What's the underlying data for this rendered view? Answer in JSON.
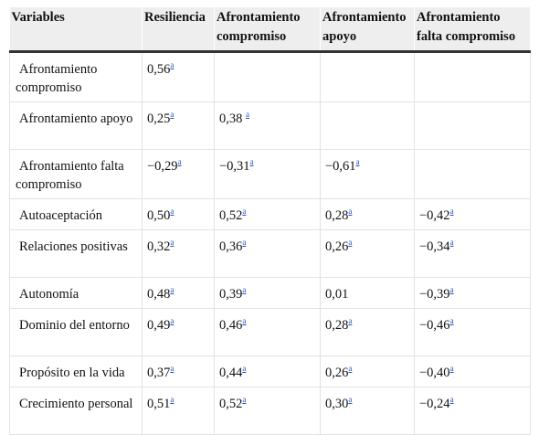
{
  "table": {
    "header": [
      "Variables",
      "Resiliencia",
      "Afrontamiento compromiso",
      "Afrontamiento apoyo",
      "Afrontamiento falta compromiso"
    ],
    "rows": [
      {
        "label": "Afrontamiento compromiso",
        "cells": [
          {
            "value": "0,56",
            "note": "a"
          }
        ]
      },
      {
        "label": "Afrontamiento apoyo",
        "cells": [
          {
            "value": "0,25",
            "note": "a"
          },
          {
            "value": "0,38 ",
            "note": "a"
          }
        ]
      },
      {
        "label": "Afrontamiento falta compromiso",
        "cells": [
          {
            "value": "−0,29",
            "note": "a"
          },
          {
            "value": "−0,31",
            "note": "a"
          },
          {
            "value": "−0,61",
            "note": "a"
          }
        ]
      },
      {
        "label": "Autoaceptación",
        "cells": [
          {
            "value": "0,50",
            "note": "a"
          },
          {
            "value": "0,52",
            "note": "a"
          },
          {
            "value": "0,28",
            "note": "a"
          },
          {
            "value": "−0,42",
            "note": "a"
          }
        ]
      },
      {
        "label": "Relaciones positivas",
        "cells": [
          {
            "value": "0,32",
            "note": "a"
          },
          {
            "value": "0,36",
            "note": "a"
          },
          {
            "value": "0,26",
            "note": "a"
          },
          {
            "value": "−0,34",
            "note": "a"
          }
        ]
      },
      {
        "label": "Autonomía",
        "cells": [
          {
            "value": "0,48",
            "note": "a"
          },
          {
            "value": "0,39",
            "note": "a"
          },
          {
            "value": "0,01"
          },
          {
            "value": "−0,39",
            "note": "a"
          }
        ]
      },
      {
        "label": "Dominio del entorno",
        "cells": [
          {
            "value": "0,49",
            "note": "a"
          },
          {
            "value": "0,46",
            "note": "a"
          },
          {
            "value": "0,28",
            "note": "a"
          },
          {
            "value": "−0,46",
            "note": "a"
          }
        ]
      },
      {
        "label": "Propósito en la vida",
        "cells": [
          {
            "value": "0,37",
            "note": "a"
          },
          {
            "value": "0,44",
            "note": "a"
          },
          {
            "value": "0,26",
            "note": "a"
          },
          {
            "value": "−0,40",
            "note": "a"
          }
        ]
      },
      {
        "label": "Crecimiento personal",
        "cells": [
          {
            "value": "0,51",
            "note": "a"
          },
          {
            "value": "0,52",
            "note": "a"
          },
          {
            "value": "0,30",
            "note": "a"
          },
          {
            "value": "−0,24",
            "note": "a"
          }
        ]
      }
    ]
  }
}
